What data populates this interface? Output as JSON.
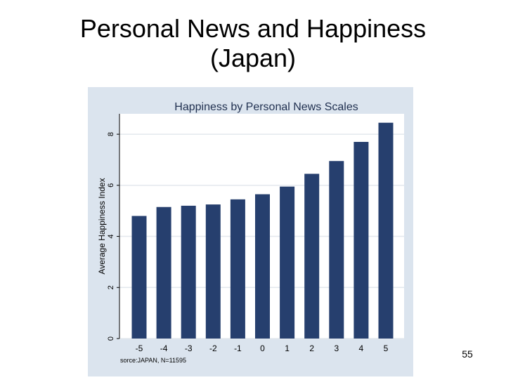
{
  "slide": {
    "title_line1": "Personal News and Happiness",
    "title_line2": "(Japan)",
    "page_number": "55"
  },
  "colors": {
    "bar": "#263f6e",
    "outer_panel": "#dbe4ee",
    "plot_background": "#ffffff",
    "grid": "#e3e8ee"
  },
  "chart_data": {
    "type": "bar",
    "title": "Happiness by Personal News Scales",
    "xlabel": "",
    "ylabel": "Average Happiness Index",
    "categories": [
      "-5",
      "-4",
      "-3",
      "-2",
      "-1",
      "0",
      "1",
      "2",
      "3",
      "4",
      "5"
    ],
    "values": [
      4.8,
      5.15,
      5.2,
      5.25,
      5.45,
      5.65,
      5.95,
      6.45,
      6.95,
      7.7,
      8.45
    ],
    "ylim": [
      0,
      8.8
    ],
    "yticks": [
      "0",
      "2",
      "4",
      "6",
      "8"
    ],
    "grid": true,
    "legend": "none",
    "note": "sorce:JAPAN, N=11595"
  }
}
